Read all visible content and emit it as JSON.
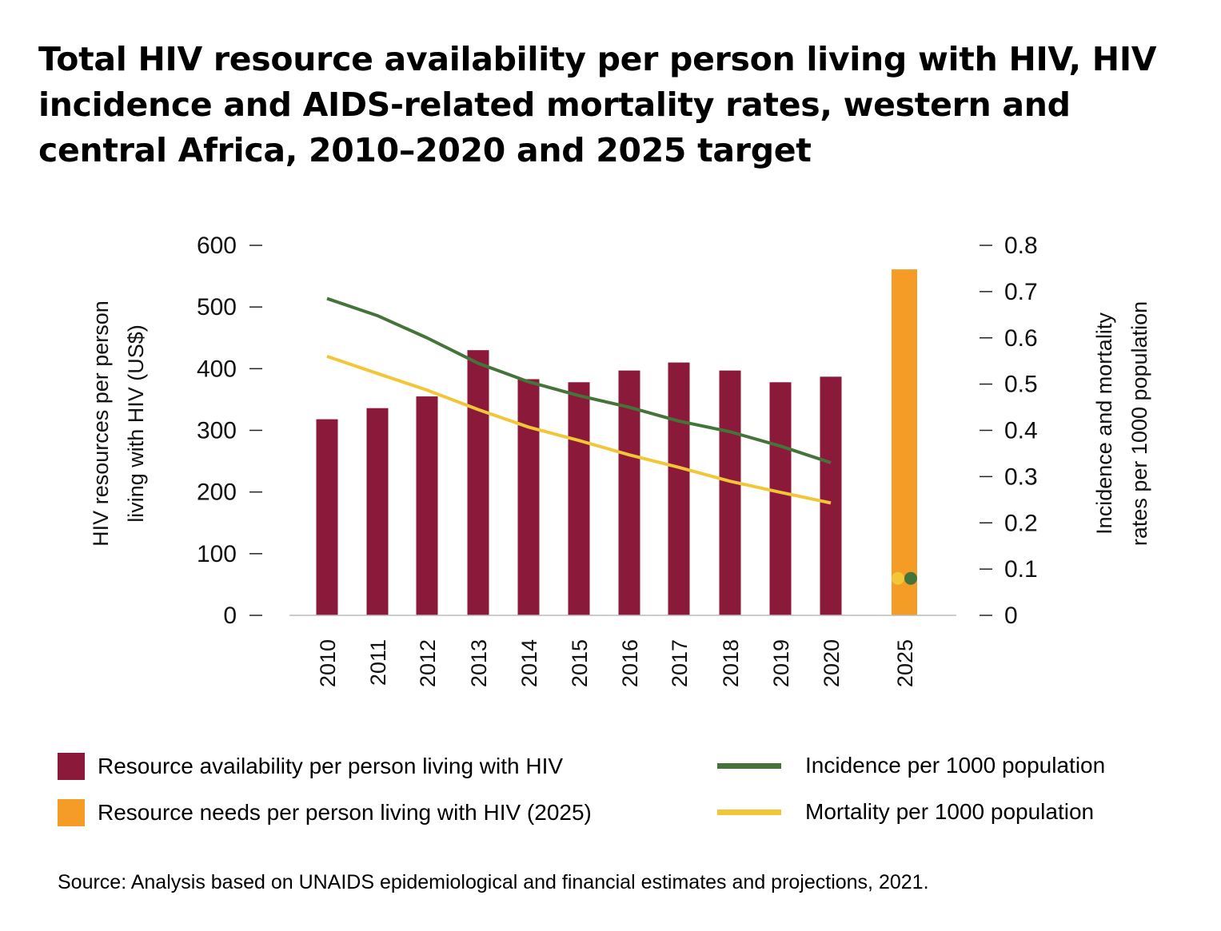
{
  "title": "Total HIV resource availability per person living with HIV, HIV incidence and AIDS-related mortality rates, western and central Africa, 2010–2020 and 2025 target",
  "colors": {
    "availability": "#8b1a3a",
    "needs": "#f49c26",
    "incidence": "#44743a",
    "mortality": "#f2c636",
    "axis": "#bbbbbb"
  },
  "legend": {
    "availability": "Resource availability per person living with HIV",
    "needs": "Resource needs per person living with HIV (2025)",
    "incidence": "Incidence per 1000 population",
    "mortality": "Mortality per 1000 population"
  },
  "source": "Source: Analysis based on UNAIDS epidemiological and financial estimates and projections, 2021.",
  "chart_data": {
    "type": "bar",
    "title": "Total HIV resource availability per person living with HIV, HIV incidence and AIDS-related mortality rates, western and central Africa, 2010–2020 and 2025 target",
    "categories": [
      "2010",
      "2011",
      "2012",
      "2013",
      "2014",
      "2015",
      "2016",
      "2017",
      "2018",
      "2019",
      "2020",
      "2025"
    ],
    "ylabel": "HIV resources per person living with HIV (US$)",
    "y2label": "Incidence and mortality rates per 1000 population",
    "ylim": [
      0,
      600
    ],
    "y2lim": [
      0,
      0.8
    ],
    "yticks": [
      "0",
      "100",
      "200",
      "300",
      "400",
      "500",
      "600"
    ],
    "y2ticks": [
      "0",
      "0.1",
      "0.2",
      "0.3",
      "0.4",
      "0.5",
      "0.6",
      "0.7",
      "0.8"
    ],
    "grid": false,
    "legend_position": "bottom",
    "series": [
      {
        "name": "Resource availability per person living with HIV",
        "type": "bar",
        "axis": "left",
        "values": [
          318,
          336,
          355,
          430,
          383,
          378,
          397,
          410,
          397,
          378,
          387,
          null
        ]
      },
      {
        "name": "Resource needs per person living with HIV (2025)",
        "type": "bar",
        "axis": "left",
        "values": [
          null,
          null,
          null,
          null,
          null,
          null,
          null,
          null,
          null,
          null,
          null,
          561
        ]
      },
      {
        "name": "Incidence per 1000 population",
        "type": "line",
        "axis": "right",
        "values": [
          0.685,
          0.648,
          0.6,
          0.545,
          0.505,
          0.475,
          0.45,
          0.42,
          0.397,
          0.366,
          0.33,
          0.08
        ]
      },
      {
        "name": "Mortality per 1000 population",
        "type": "line",
        "axis": "right",
        "values": [
          0.56,
          0.523,
          0.487,
          0.445,
          0.407,
          0.378,
          0.347,
          0.32,
          0.29,
          0.266,
          0.243,
          0.08
        ]
      }
    ]
  }
}
